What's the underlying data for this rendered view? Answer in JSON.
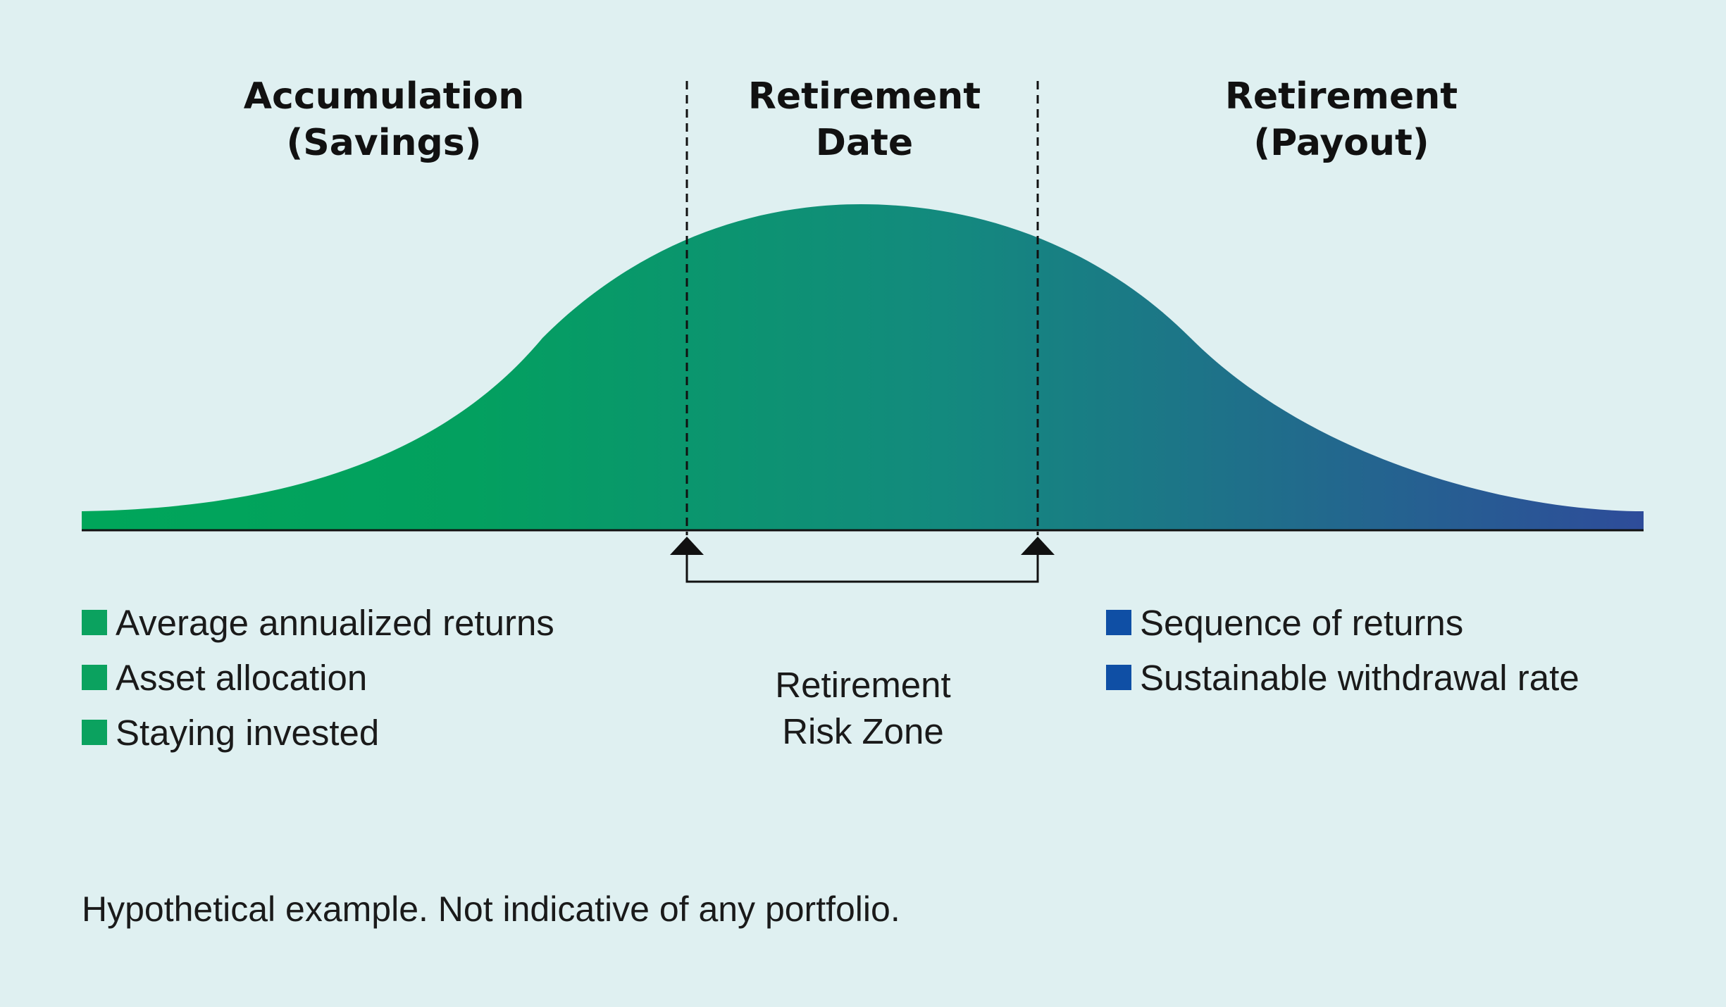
{
  "phases": {
    "accumulation": {
      "line1": "Accumulation",
      "line2": "(Savings)"
    },
    "retirement_date": {
      "line1": "Retirement",
      "line2": "Date"
    },
    "payout": {
      "line1": "Retirement",
      "line2": "(Payout)"
    }
  },
  "legend_left": {
    "color": "#0ba25f",
    "items": [
      "Average annualized returns",
      "Asset allocation",
      "Staying invested"
    ]
  },
  "legend_right": {
    "color": "#0f4fa5",
    "items": [
      "Sequence of returns",
      "Sustainable withdrawal rate"
    ]
  },
  "risk_zone": {
    "line1": "Retirement",
    "line2": "Risk Zone"
  },
  "curve_gradient": {
    "start": "#00a65a",
    "mid": "#138a7e",
    "end": "#2e4c9a"
  },
  "footnote": "Hypothetical example. Not indicative of any portfolio."
}
